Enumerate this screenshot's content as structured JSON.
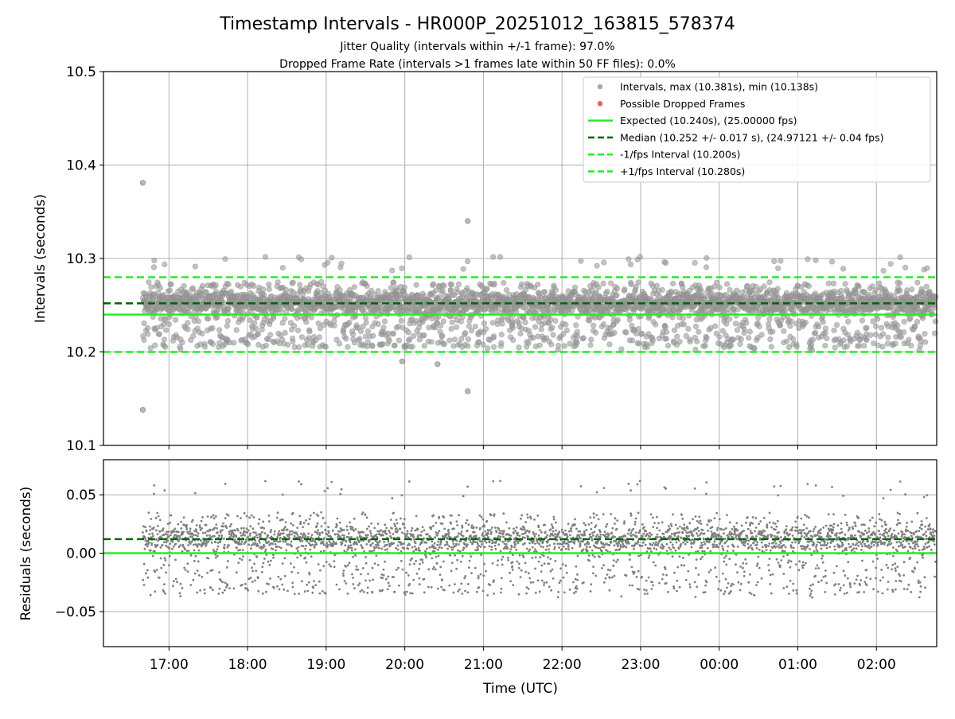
{
  "title": "Timestamp Intervals - HR000P_20251012_163815_578374",
  "subtitle_1": "Jitter Quality (intervals within +/-1 frame): 97.0%",
  "subtitle_2": "Dropped Frame Rate (intervals >1 frames late within 50 FF files): 0.0%",
  "colors": {
    "points": "#808080",
    "dropped": "#e8474b",
    "expected": "#22ee22",
    "median": "#006400",
    "grid": "#b0b0b0"
  },
  "chart_data": [
    {
      "type": "scatter",
      "name": "intervals",
      "ylabel": "Intervals (seconds)",
      "xlabel": "",
      "ylim": [
        10.1,
        10.5
      ],
      "y_ticks": [
        10.1,
        10.2,
        10.3,
        10.4,
        10.5
      ],
      "y_tick_labels": [
        "10.1",
        "10.2",
        "10.3",
        "10.4",
        "10.5"
      ],
      "grid": true,
      "legend_position": "top-right",
      "legend": [
        {
          "label": "Intervals, max (10.381s), min (10.138s)",
          "marker": "dot",
          "color": "#aaaaaa"
        },
        {
          "label": "Possible Dropped Frames",
          "marker": "dot",
          "color": "#e8474b"
        },
        {
          "label": "Expected (10.240s), (25.00000 fps)",
          "marker": "solid",
          "color": "#22ee22"
        },
        {
          "label": "Median (10.252 +/- 0.017 s), (24.97121 +/- 0.04 fps)",
          "marker": "dashed",
          "color": "#006400"
        },
        {
          "label": "-1/fps Interval (10.200s)",
          "marker": "dashed",
          "color": "#22ee22"
        },
        {
          "label": "+1/fps Interval (10.280s)",
          "marker": "dashed",
          "color": "#22ee22"
        }
      ],
      "reference_lines": [
        {
          "y": 10.24,
          "style": "solid",
          "color": "#22ee22"
        },
        {
          "y": 10.252,
          "style": "dashed",
          "color": "#006400"
        },
        {
          "y": 10.2,
          "style": "dashed",
          "color": "#22ee22"
        },
        {
          "y": 10.28,
          "style": "dashed",
          "color": "#22ee22"
        }
      ],
      "max_interval": 10.381,
      "min_interval": 10.138,
      "time_range": [
        "16:40",
        "02:45"
      ],
      "outliers": [
        {
          "x": "16:40",
          "y": 10.381
        },
        {
          "x": "16:40",
          "y": 10.138
        },
        {
          "x": "20:48",
          "y": 10.34
        },
        {
          "x": "20:48",
          "y": 10.158
        },
        {
          "x": "20:25",
          "y": 10.187
        },
        {
          "x": "19:58",
          "y": 10.19
        }
      ]
    },
    {
      "type": "scatter",
      "name": "residuals",
      "ylabel": "Residuals (seconds)",
      "xlabel": "Time (UTC)",
      "ylim": [
        -0.08,
        0.08
      ],
      "y_ticks": [
        -0.05,
        0.0,
        0.05
      ],
      "y_tick_labels": [
        "−0.05",
        "0.00",
        "0.05"
      ],
      "x_ticks": [
        "17:00",
        "18:00",
        "19:00",
        "20:00",
        "21:00",
        "22:00",
        "23:00",
        "00:00",
        "01:00",
        "02:00"
      ],
      "grid": true,
      "reference_lines": [
        {
          "y": 0.0,
          "style": "solid",
          "color": "#22ee22"
        },
        {
          "y": 0.012,
          "style": "dashed",
          "color": "#006400"
        }
      ]
    }
  ]
}
